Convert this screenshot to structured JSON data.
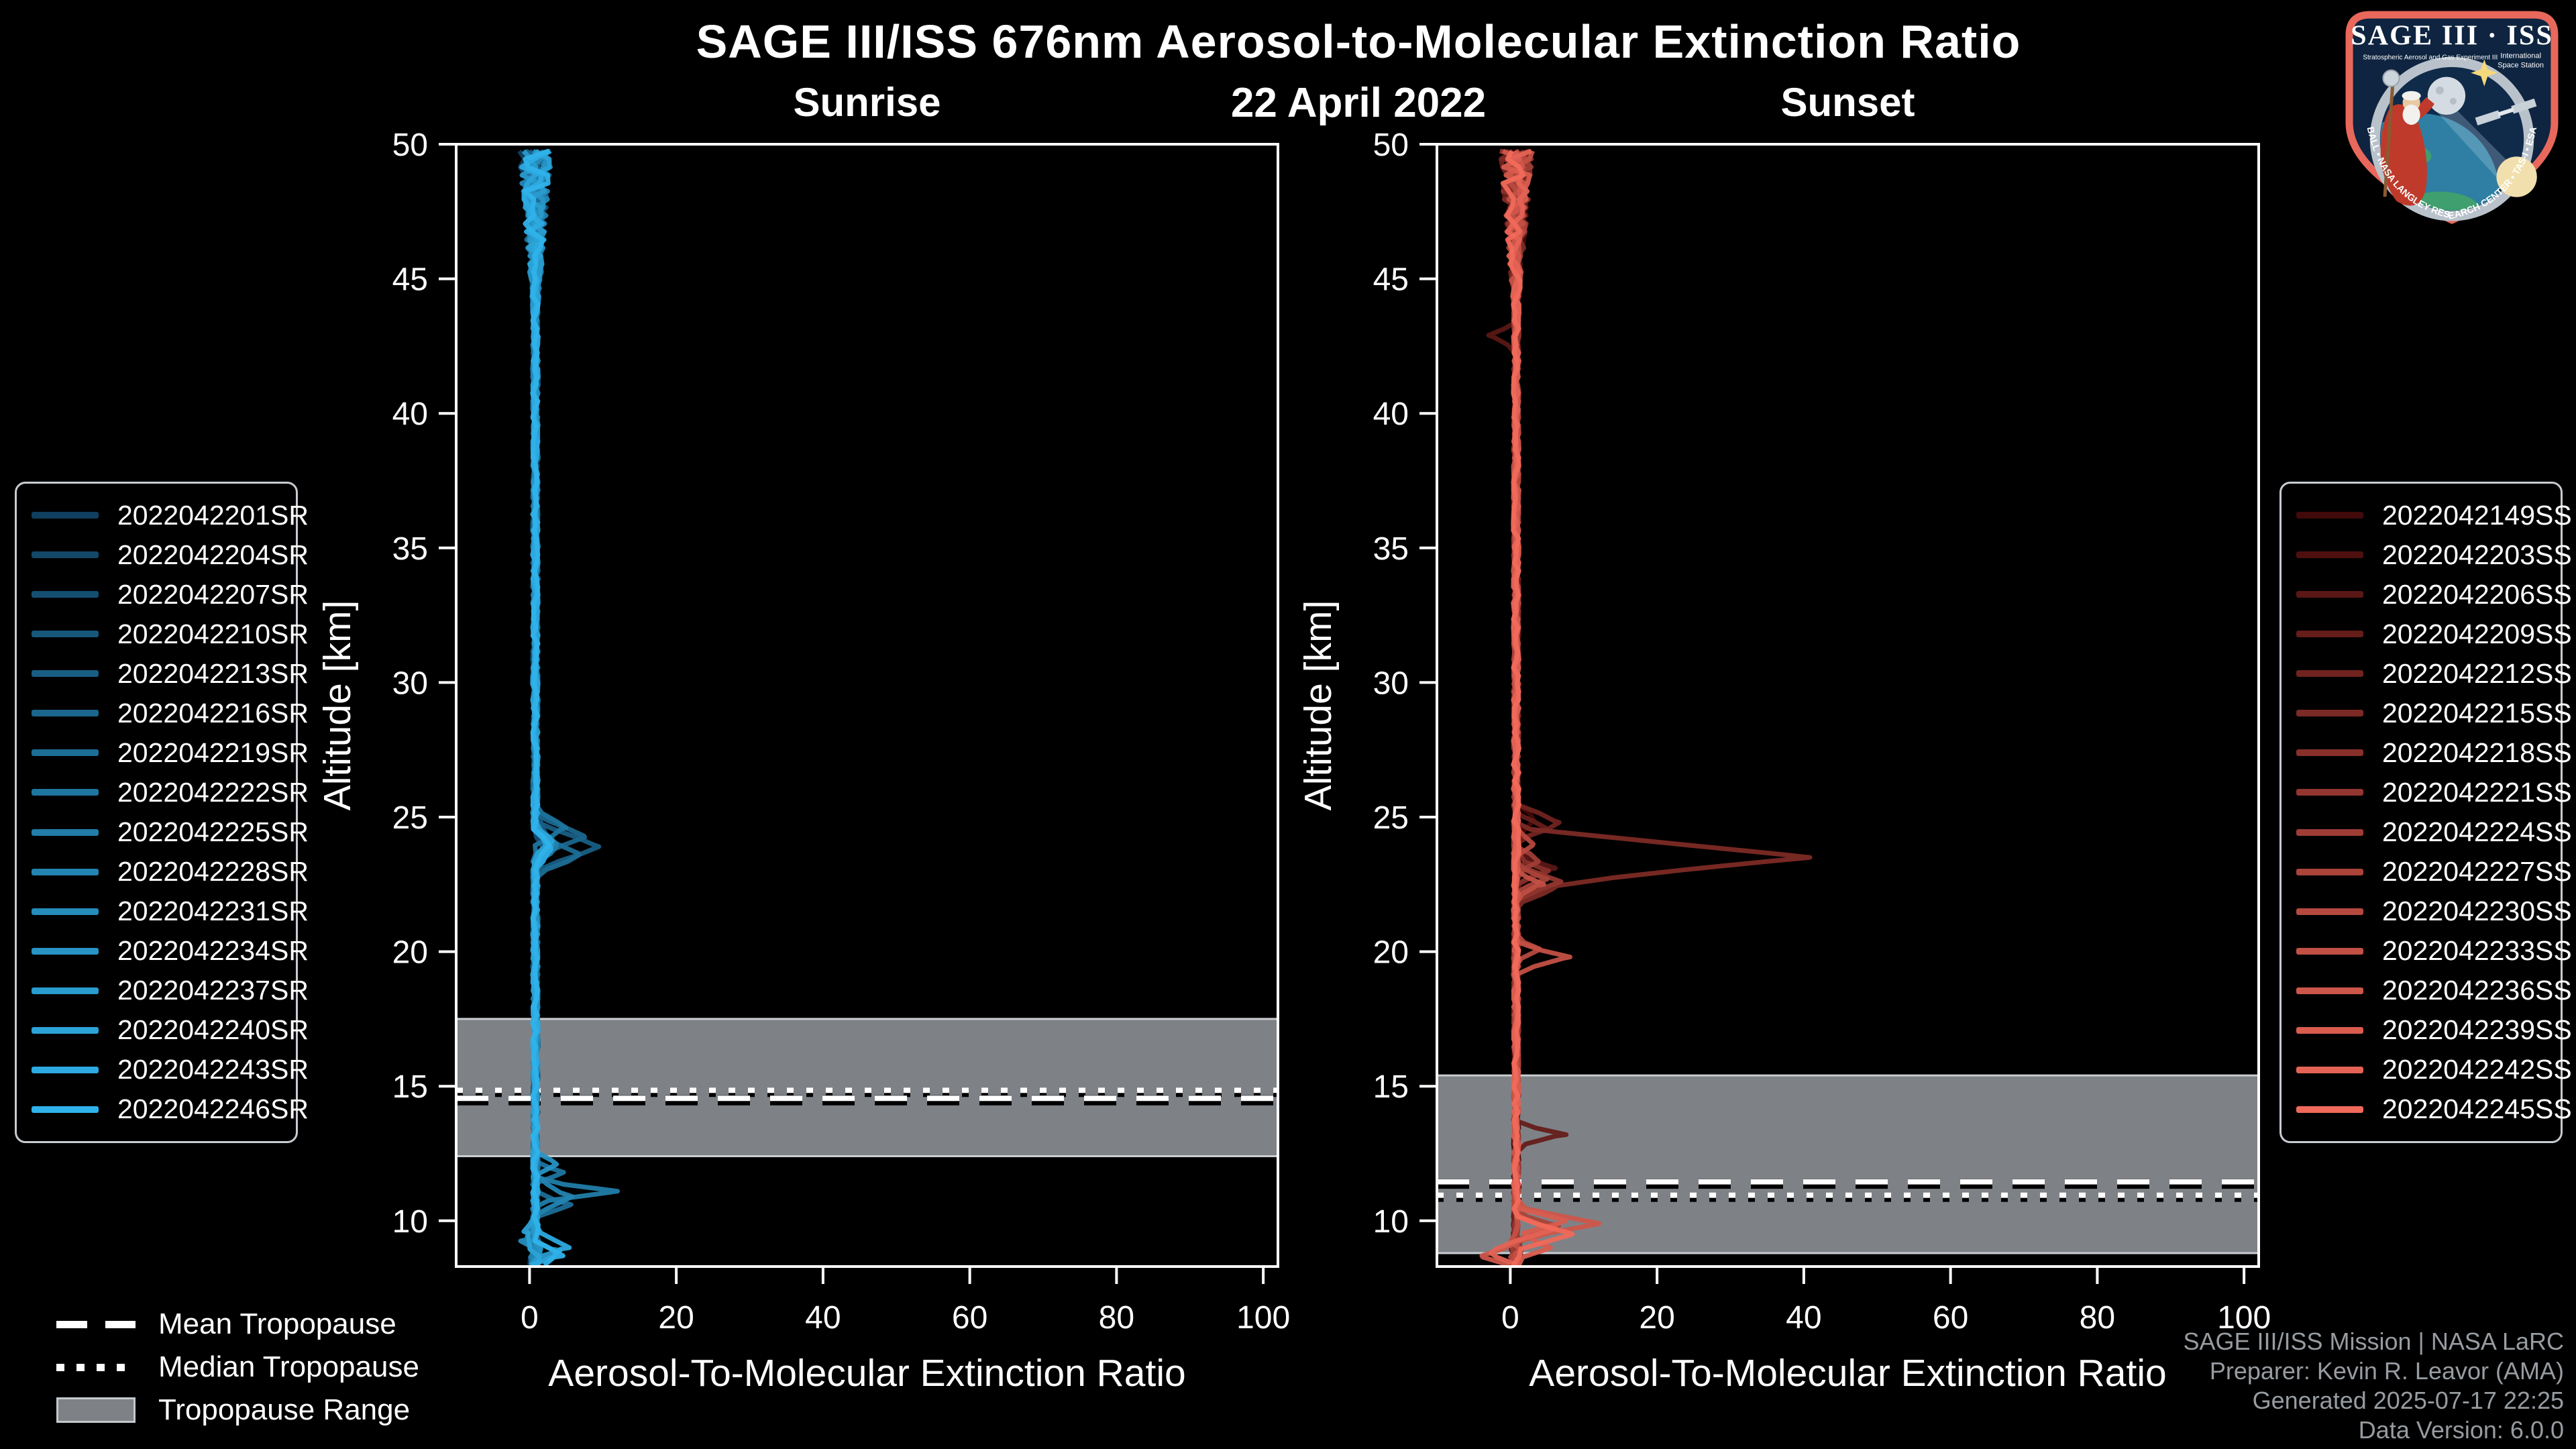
{
  "chart_data": {
    "type": "line",
    "title": "SAGE III/ISS 676nm Aerosol-to-Molecular Extinction Ratio",
    "subtitle": "22 April 2022",
    "xlabel": "Aerosol-To-Molecular Extinction Ratio",
    "ylabel": "Altitude [km]",
    "xlim": [
      -10,
      102
    ],
    "ylim": [
      8.3,
      50
    ],
    "xticks": [
      0,
      20,
      40,
      60,
      80,
      100
    ],
    "yticks": [
      10,
      15,
      20,
      25,
      30,
      35,
      40,
      45,
      50
    ],
    "grid": false,
    "legend_position": "outside-left-and-right",
    "styles": {
      "background": "#000000",
      "axis_color": "#ffffff",
      "band_color": "#7e8287",
      "band_edge_color": "#c9ccd0",
      "tropopause_line_color": "#ffffff",
      "tropopause_line_shadow": "#000000"
    },
    "panels": [
      {
        "key": "sunrise",
        "title": "Sunrise",
        "tropopause": {
          "range_km": [
            12.4,
            17.5
          ],
          "mean_km": 14.55,
          "median_km": 14.85
        },
        "profile_base": 0.8,
        "profiles": [
          {
            "id": "2022042201SR",
            "color": "#10405F",
            "peaks": [
              [
                23.9,
                0.8,
                1.5
              ]
            ]
          },
          {
            "id": "2022042204SR",
            "color": "#124868",
            "peaks": [
              [
                24.1,
                0.9,
                2.0
              ]
            ]
          },
          {
            "id": "2022042207SR",
            "color": "#144F72",
            "peaks": [
              [
                23.6,
                0.7,
                1.5
              ]
            ]
          },
          {
            "id": "2022042210SR",
            "color": "#16577B",
            "peaks": [
              [
                24.0,
                1.0,
                2.5
              ]
            ]
          },
          {
            "id": "2022042213SR",
            "color": "#185E84",
            "peaks": [
              [
                23.9,
                0.9,
                8.5
              ]
            ]
          },
          {
            "id": "2022042216SR",
            "color": "#1A668D",
            "peaks": [
              [
                24.3,
                0.8,
                7.0
              ]
            ]
          },
          {
            "id": "2022042219SR",
            "color": "#1C6E97",
            "peaks": [
              [
                23.6,
                0.8,
                6.0
              ],
              [
                10.6,
                0.5,
                4.5
              ]
            ]
          },
          {
            "id": "2022042222SR",
            "color": "#1E75A0",
            "peaks": [
              [
                24.6,
                0.7,
                4.0
              ],
              [
                11.8,
                0.4,
                3.5
              ]
            ]
          },
          {
            "id": "2022042225SR",
            "color": "#217DA9",
            "peaks": [
              [
                23.9,
                0.6,
                3.0
              ],
              [
                11.1,
                0.4,
                11.0
              ]
            ]
          },
          {
            "id": "2022042228SR",
            "color": "#2384B2",
            "peaks": [
              [
                24.0,
                0.8,
                2.5
              ],
              [
                10.9,
                0.6,
                5.0
              ]
            ]
          },
          {
            "id": "2022042231SR",
            "color": "#258CBC",
            "peaks": [
              [
                23.8,
                0.7,
                2.0
              ],
              [
                9.3,
                0.5,
                -2.0
              ]
            ]
          },
          {
            "id": "2022042234SR",
            "color": "#2794C5",
            "peaks": [
              [
                24.0,
                0.8,
                2.2
              ],
              [
                12.1,
                0.4,
                3.0
              ]
            ]
          },
          {
            "id": "2022042237SR",
            "color": "#299BCE",
            "peaks": [
              [
                23.9,
                0.7,
                1.8
              ],
              [
                8.9,
                0.4,
                3.0
              ]
            ]
          },
          {
            "id": "2022042240SR",
            "color": "#2BA3D7",
            "peaks": [
              [
                24.1,
                0.6,
                2.0
              ],
              [
                9.6,
                0.5,
                -1.5
              ]
            ]
          },
          {
            "id": "2022042243SR",
            "color": "#2DAAE1",
            "peaks": [
              [
                23.8,
                0.7,
                2.2
              ],
              [
                9.0,
                0.6,
                4.0
              ]
            ]
          },
          {
            "id": "2022042246SR",
            "color": "#2FB2EA",
            "peaks": [
              [
                24.0,
                0.6,
                1.8
              ],
              [
                8.7,
                0.5,
                3.0
              ]
            ]
          }
        ]
      },
      {
        "key": "sunset",
        "title": "Sunset",
        "tropopause": {
          "range_km": [
            8.8,
            15.4
          ],
          "mean_km": 11.45,
          "median_km": 10.95
        },
        "profile_base": 0.8,
        "profiles": [
          {
            "id": "2022042149SS",
            "color": "#420A0A",
            "peaks": [
              [
                24.9,
                0.7,
                2.5
              ]
            ]
          },
          {
            "id": "2022042203SS",
            "color": "#4E100F",
            "peaks": [
              [
                23.3,
                0.5,
                2.0
              ]
            ]
          },
          {
            "id": "2022042206SS",
            "color": "#591715",
            "peaks": [
              [
                23.1,
                0.6,
                5.0
              ],
              [
                42.9,
                0.5,
                -3.5
              ]
            ]
          },
          {
            "id": "2022042209SS",
            "color": "#651D1A",
            "peaks": [
              [
                24.6,
                0.6,
                4.0
              ],
              [
                13.2,
                0.45,
                6.5
              ]
            ]
          },
          {
            "id": "2022042212SS",
            "color": "#70231F",
            "peaks": [
              [
                24.8,
                0.7,
                6.0
              ]
            ]
          },
          {
            "id": "2022042215SS",
            "color": "#7C2A25",
            "peaks": [
              [
                23.5,
                1.1,
                40.0
              ],
              [
                22.3,
                0.5,
                5.0
              ]
            ]
          },
          {
            "id": "2022042218SS",
            "color": "#88302A",
            "peaks": [
              [
                23.0,
                0.5,
                4.5
              ]
            ]
          },
          {
            "id": "2022042221SS",
            "color": "#93362F",
            "peaks": [
              [
                22.6,
                0.6,
                6.5
              ]
            ]
          },
          {
            "id": "2022042224SS",
            "color": "#9F3D35",
            "peaks": [
              [
                23.4,
                0.5,
                3.0
              ]
            ]
          },
          {
            "id": "2022042227SS",
            "color": "#AA433A",
            "peaks": [
              [
                22.7,
                0.5,
                4.0
              ],
              [
                9.8,
                0.5,
                6.0
              ]
            ]
          },
          {
            "id": "2022042230SS",
            "color": "#B6493F",
            "peaks": [
              [
                24.0,
                0.5,
                2.5
              ],
              [
                20.1,
                0.4,
                3.0
              ]
            ]
          },
          {
            "id": "2022042233SS",
            "color": "#C25045",
            "peaks": [
              [
                19.8,
                0.5,
                7.0
              ],
              [
                22.5,
                0.5,
                3.5
              ]
            ]
          },
          {
            "id": "2022042236SS",
            "color": "#CD564A",
            "peaks": [
              [
                9.9,
                0.6,
                11.5
              ],
              [
                8.7,
                0.45,
                -5.0
              ]
            ]
          },
          {
            "id": "2022042239SS",
            "color": "#D95C4F",
            "peaks": [
              [
                10.0,
                0.5,
                7.0
              ],
              [
                9.0,
                0.5,
                5.0
              ]
            ]
          },
          {
            "id": "2022042242SS",
            "color": "#E46355",
            "peaks": [
              [
                9.7,
                0.5,
                5.0
              ],
              [
                8.8,
                0.5,
                -3.0
              ]
            ]
          },
          {
            "id": "2022042245SS",
            "color": "#F0695A",
            "peaks": [
              [
                9.5,
                0.6,
                8.0
              ]
            ]
          }
        ]
      }
    ]
  },
  "tropopause_legend": {
    "items": [
      {
        "label": "Mean Tropopause",
        "style": "dashed"
      },
      {
        "label": "Median Tropopause",
        "style": "dotted"
      },
      {
        "label": "Tropopause Range",
        "style": "band"
      }
    ]
  },
  "footer": {
    "lines": [
      "SAGE III/ISS Mission | NASA LaRC",
      "Preparer: Kevin R. Leavor (AMA)",
      "Generated 2025-07-17 22:25",
      "Data Version: 6.0.0"
    ]
  },
  "logo": {
    "title": "SAGE III · ISS",
    "subtitle_left": "Stratospheric Aerosol and Gas Experiment III",
    "subtitle_right_line1": "International",
    "subtitle_right_line2": "Space Station",
    "border_text": "BALL • NASA LANGLEY RESEARCH CENTER • TAS-I • ESA",
    "border_color": "#E8685B",
    "background_color": "#0E2440"
  }
}
